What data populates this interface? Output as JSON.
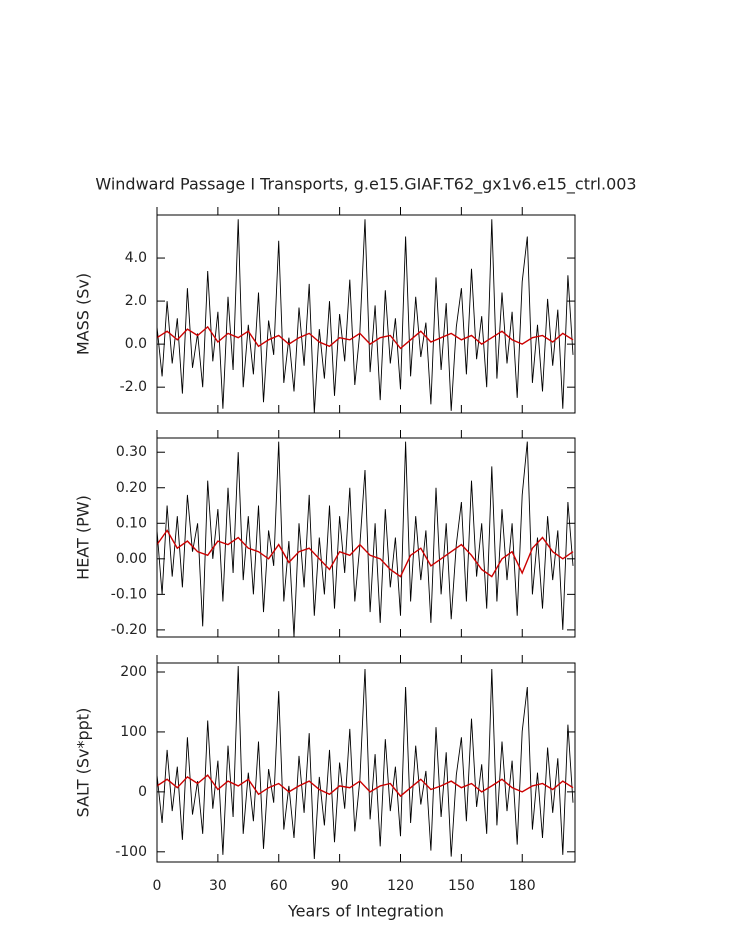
{
  "chart_data": [
    {
      "type": "line",
      "title": "Windward Passage I Transports, g.e15.GIAF.T62_gx1v6.e15_ctrl.003",
      "ylabel": "MASS (Sv)",
      "xlim": [
        0,
        206
      ],
      "xticks": [
        0,
        30,
        60,
        90,
        120,
        150,
        180
      ],
      "ylim": [
        -3.2,
        6.0
      ],
      "yticks": [
        {
          "value": -2,
          "label": "-2.0"
        },
        {
          "value": 0,
          "label": "0.0"
        },
        {
          "value": 2,
          "label": "2.0"
        },
        {
          "value": 4,
          "label": "4.0"
        }
      ],
      "series": [
        {
          "color": "#000000",
          "x": [
            0,
            2.5,
            5,
            7.5,
            10,
            12.5,
            15,
            17.5,
            20,
            22.5,
            25,
            27.5,
            30,
            32.5,
            35,
            37.5,
            40,
            42.5,
            45,
            47.5,
            50,
            52.5,
            55,
            57.5,
            60,
            62.5,
            65,
            67.5,
            70,
            72.5,
            75,
            77.5,
            80,
            82.5,
            85,
            87.5,
            90,
            92.5,
            95,
            97.5,
            100,
            102.5,
            105,
            107.5,
            110,
            112.5,
            115,
            117.5,
            120,
            122.5,
            125,
            127.5,
            130,
            132.5,
            135,
            137.5,
            140,
            142.5,
            145,
            147.5,
            150,
            152.5,
            155,
            157.5,
            160,
            162.5,
            165,
            167.5,
            170,
            172.5,
            175,
            177.5,
            180,
            182.5,
            185,
            187.5,
            190,
            192.5,
            195,
            197.5,
            200,
            202.5,
            205
          ],
          "values": [
            0.8,
            -1.5,
            2.0,
            -0.9,
            1.2,
            -2.3,
            2.6,
            -1.1,
            0.5,
            -2.0,
            3.4,
            -0.8,
            1.5,
            -3.0,
            2.2,
            -1.2,
            5.8,
            -2.0,
            0.9,
            -1.4,
            2.4,
            -2.7,
            1.1,
            -0.5,
            4.8,
            -1.8,
            0.3,
            -2.2,
            1.7,
            -1.0,
            2.8,
            -3.2,
            0.7,
            -1.6,
            2.0,
            -2.4,
            1.4,
            -0.8,
            3.0,
            -1.9,
            0.6,
            5.8,
            -1.3,
            1.8,
            -2.6,
            2.5,
            -0.9,
            1.2,
            -2.1,
            5.0,
            -1.5,
            2.2,
            -0.6,
            1.0,
            -2.8,
            3.1,
            -1.2,
            1.9,
            -3.1,
            0.8,
            2.6,
            -1.4,
            3.5,
            -0.7,
            1.3,
            -2.0,
            5.8,
            -1.6,
            2.4,
            -0.9,
            1.5,
            -2.5,
            2.9,
            5.0,
            -1.8,
            0.9,
            -2.2,
            2.1,
            -1.0,
            1.6,
            -3.0,
            3.2,
            -0.5
          ]
        },
        {
          "color": "#cc0000",
          "x": [
            0,
            5,
            10,
            15,
            20,
            25,
            30,
            35,
            40,
            45,
            50,
            55,
            60,
            65,
            70,
            75,
            80,
            85,
            90,
            95,
            100,
            105,
            110,
            115,
            120,
            125,
            130,
            135,
            140,
            145,
            150,
            155,
            160,
            165,
            170,
            175,
            180,
            185,
            190,
            195,
            200,
            205
          ],
          "values": [
            0.3,
            0.6,
            0.2,
            0.7,
            0.4,
            0.8,
            0.1,
            0.5,
            0.3,
            0.6,
            -0.1,
            0.2,
            0.4,
            0.0,
            0.3,
            0.5,
            0.1,
            -0.1,
            0.3,
            0.2,
            0.5,
            0.0,
            0.3,
            0.4,
            -0.2,
            0.2,
            0.6,
            0.1,
            0.3,
            0.5,
            0.2,
            0.4,
            0.0,
            0.3,
            0.6,
            0.2,
            0.0,
            0.3,
            0.4,
            0.1,
            0.5,
            0.2
          ]
        }
      ]
    },
    {
      "type": "line",
      "ylabel": "HEAT (PW)",
      "xlim": [
        0,
        206
      ],
      "xticks": [
        0,
        30,
        60,
        90,
        120,
        150,
        180
      ],
      "ylim": [
        -0.22,
        0.34
      ],
      "yticks": [
        {
          "value": -0.2,
          "label": "-0.20"
        },
        {
          "value": -0.1,
          "label": "-0.10"
        },
        {
          "value": 0,
          "label": "0.00"
        },
        {
          "value": 0.1,
          "label": "0.10"
        },
        {
          "value": 0.2,
          "label": "0.20"
        },
        {
          "value": 0.3,
          "label": "0.30"
        }
      ],
      "series": [
        {
          "color": "#000000",
          "x": [
            0,
            2.5,
            5,
            7.5,
            10,
            12.5,
            15,
            17.5,
            20,
            22.5,
            25,
            27.5,
            30,
            32.5,
            35,
            37.5,
            40,
            42.5,
            45,
            47.5,
            50,
            52.5,
            55,
            57.5,
            60,
            62.5,
            65,
            67.5,
            70,
            72.5,
            75,
            77.5,
            80,
            82.5,
            85,
            87.5,
            90,
            92.5,
            95,
            97.5,
            100,
            102.5,
            105,
            107.5,
            110,
            112.5,
            115,
            117.5,
            120,
            122.5,
            125,
            127.5,
            130,
            132.5,
            135,
            137.5,
            140,
            142.5,
            145,
            147.5,
            150,
            152.5,
            155,
            157.5,
            160,
            162.5,
            165,
            167.5,
            170,
            172.5,
            175,
            177.5,
            180,
            182.5,
            185,
            187.5,
            190,
            192.5,
            195,
            197.5,
            200,
            202.5,
            205
          ],
          "values": [
            0.08,
            -0.1,
            0.15,
            -0.05,
            0.12,
            -0.08,
            0.18,
            0.02,
            0.1,
            -0.19,
            0.22,
            0.0,
            0.14,
            -0.12,
            0.2,
            -0.04,
            0.3,
            -0.06,
            0.12,
            -0.1,
            0.15,
            -0.15,
            0.08,
            -0.02,
            0.33,
            -0.12,
            0.05,
            -0.22,
            0.1,
            -0.08,
            0.18,
            -0.16,
            0.06,
            -0.1,
            0.15,
            -0.14,
            0.12,
            -0.04,
            0.2,
            -0.12,
            0.04,
            0.25,
            -0.15,
            0.1,
            -0.18,
            0.14,
            -0.08,
            0.06,
            -0.16,
            0.33,
            -0.12,
            0.12,
            -0.06,
            0.08,
            -0.18,
            0.2,
            -0.1,
            0.1,
            -0.17,
            0.04,
            0.16,
            -0.12,
            0.22,
            -0.05,
            0.1,
            -0.14,
            0.26,
            -0.12,
            0.14,
            -0.06,
            0.1,
            -0.16,
            0.18,
            0.33,
            -0.1,
            0.06,
            -0.14,
            0.12,
            -0.06,
            0.08,
            -0.2,
            0.16,
            -0.02
          ]
        },
        {
          "color": "#cc0000",
          "x": [
            0,
            5,
            10,
            15,
            20,
            25,
            30,
            35,
            40,
            45,
            50,
            55,
            60,
            65,
            70,
            75,
            80,
            85,
            90,
            95,
            100,
            105,
            110,
            115,
            120,
            125,
            130,
            135,
            140,
            145,
            150,
            155,
            160,
            165,
            170,
            175,
            180,
            185,
            190,
            195,
            200,
            205
          ],
          "values": [
            0.04,
            0.08,
            0.03,
            0.05,
            0.02,
            0.01,
            0.05,
            0.04,
            0.06,
            0.03,
            0.02,
            0.0,
            0.04,
            -0.01,
            0.02,
            0.03,
            0.0,
            -0.03,
            0.02,
            0.01,
            0.04,
            0.01,
            0.0,
            -0.03,
            -0.05,
            0.01,
            0.03,
            -0.02,
            0.0,
            0.02,
            0.04,
            0.01,
            -0.03,
            -0.05,
            0.0,
            0.02,
            -0.04,
            0.03,
            0.06,
            0.02,
            0.0,
            0.02
          ]
        }
      ]
    },
    {
      "type": "line",
      "ylabel": "SALT (Sv*ppt)",
      "xlabel": "Years of Integration",
      "xlim": [
        0,
        206
      ],
      "xticks": [
        0,
        30,
        60,
        90,
        120,
        150,
        180
      ],
      "ylim": [
        -117,
        215
      ],
      "yticks": [
        -100,
        0,
        100,
        200
      ],
      "series": [
        {
          "color": "#000000",
          "x": [
            0,
            2.5,
            5,
            7.5,
            10,
            12.5,
            15,
            17.5,
            20,
            22.5,
            25,
            27.5,
            30,
            32.5,
            35,
            37.5,
            40,
            42.5,
            45,
            47.5,
            50,
            52.5,
            55,
            57.5,
            60,
            62.5,
            65,
            67.5,
            70,
            72.5,
            75,
            77.5,
            80,
            82.5,
            85,
            87.5,
            90,
            92.5,
            95,
            97.5,
            100,
            102.5,
            105,
            107.5,
            110,
            112.5,
            115,
            117.5,
            120,
            122.5,
            125,
            127.5,
            130,
            132.5,
            135,
            137.5,
            140,
            142.5,
            145,
            147.5,
            150,
            152.5,
            155,
            157.5,
            160,
            162.5,
            165,
            167.5,
            170,
            172.5,
            175,
            177.5,
            180,
            182.5,
            185,
            187.5,
            190,
            192.5,
            195,
            197.5,
            200,
            202.5,
            205
          ],
          "values": [
            28,
            -52,
            70,
            -32,
            42,
            -80,
            91,
            -38,
            18,
            -70,
            119,
            -28,
            52,
            -105,
            77,
            -42,
            210,
            -70,
            32,
            -49,
            84,
            -95,
            38,
            -18,
            168,
            -63,
            10,
            -77,
            60,
            -35,
            98,
            -112,
            25,
            -56,
            70,
            -84,
            49,
            -28,
            105,
            -66,
            21,
            205,
            -46,
            63,
            -91,
            88,
            -32,
            42,
            -74,
            175,
            -52,
            77,
            -21,
            35,
            -98,
            108,
            -42,
            66,
            -108,
            28,
            91,
            -49,
            122,
            -25,
            46,
            -70,
            205,
            -56,
            84,
            -32,
            52,
            -88,
            101,
            175,
            -63,
            32,
            -77,
            74,
            -35,
            56,
            -105,
            112,
            -18
          ]
        },
        {
          "color": "#cc0000",
          "x": [
            0,
            5,
            10,
            15,
            20,
            25,
            30,
            35,
            40,
            45,
            50,
            55,
            60,
            65,
            70,
            75,
            80,
            85,
            90,
            95,
            100,
            105,
            110,
            115,
            120,
            125,
            130,
            135,
            140,
            145,
            150,
            155,
            160,
            165,
            170,
            175,
            180,
            185,
            190,
            195,
            200,
            205
          ],
          "values": [
            10,
            21,
            7,
            25,
            14,
            28,
            4,
            18,
            10,
            21,
            -4,
            7,
            14,
            0,
            10,
            18,
            4,
            -4,
            10,
            7,
            18,
            0,
            10,
            14,
            -7,
            7,
            21,
            4,
            10,
            18,
            7,
            14,
            0,
            10,
            21,
            7,
            0,
            10,
            14,
            4,
            18,
            7
          ]
        }
      ]
    }
  ]
}
